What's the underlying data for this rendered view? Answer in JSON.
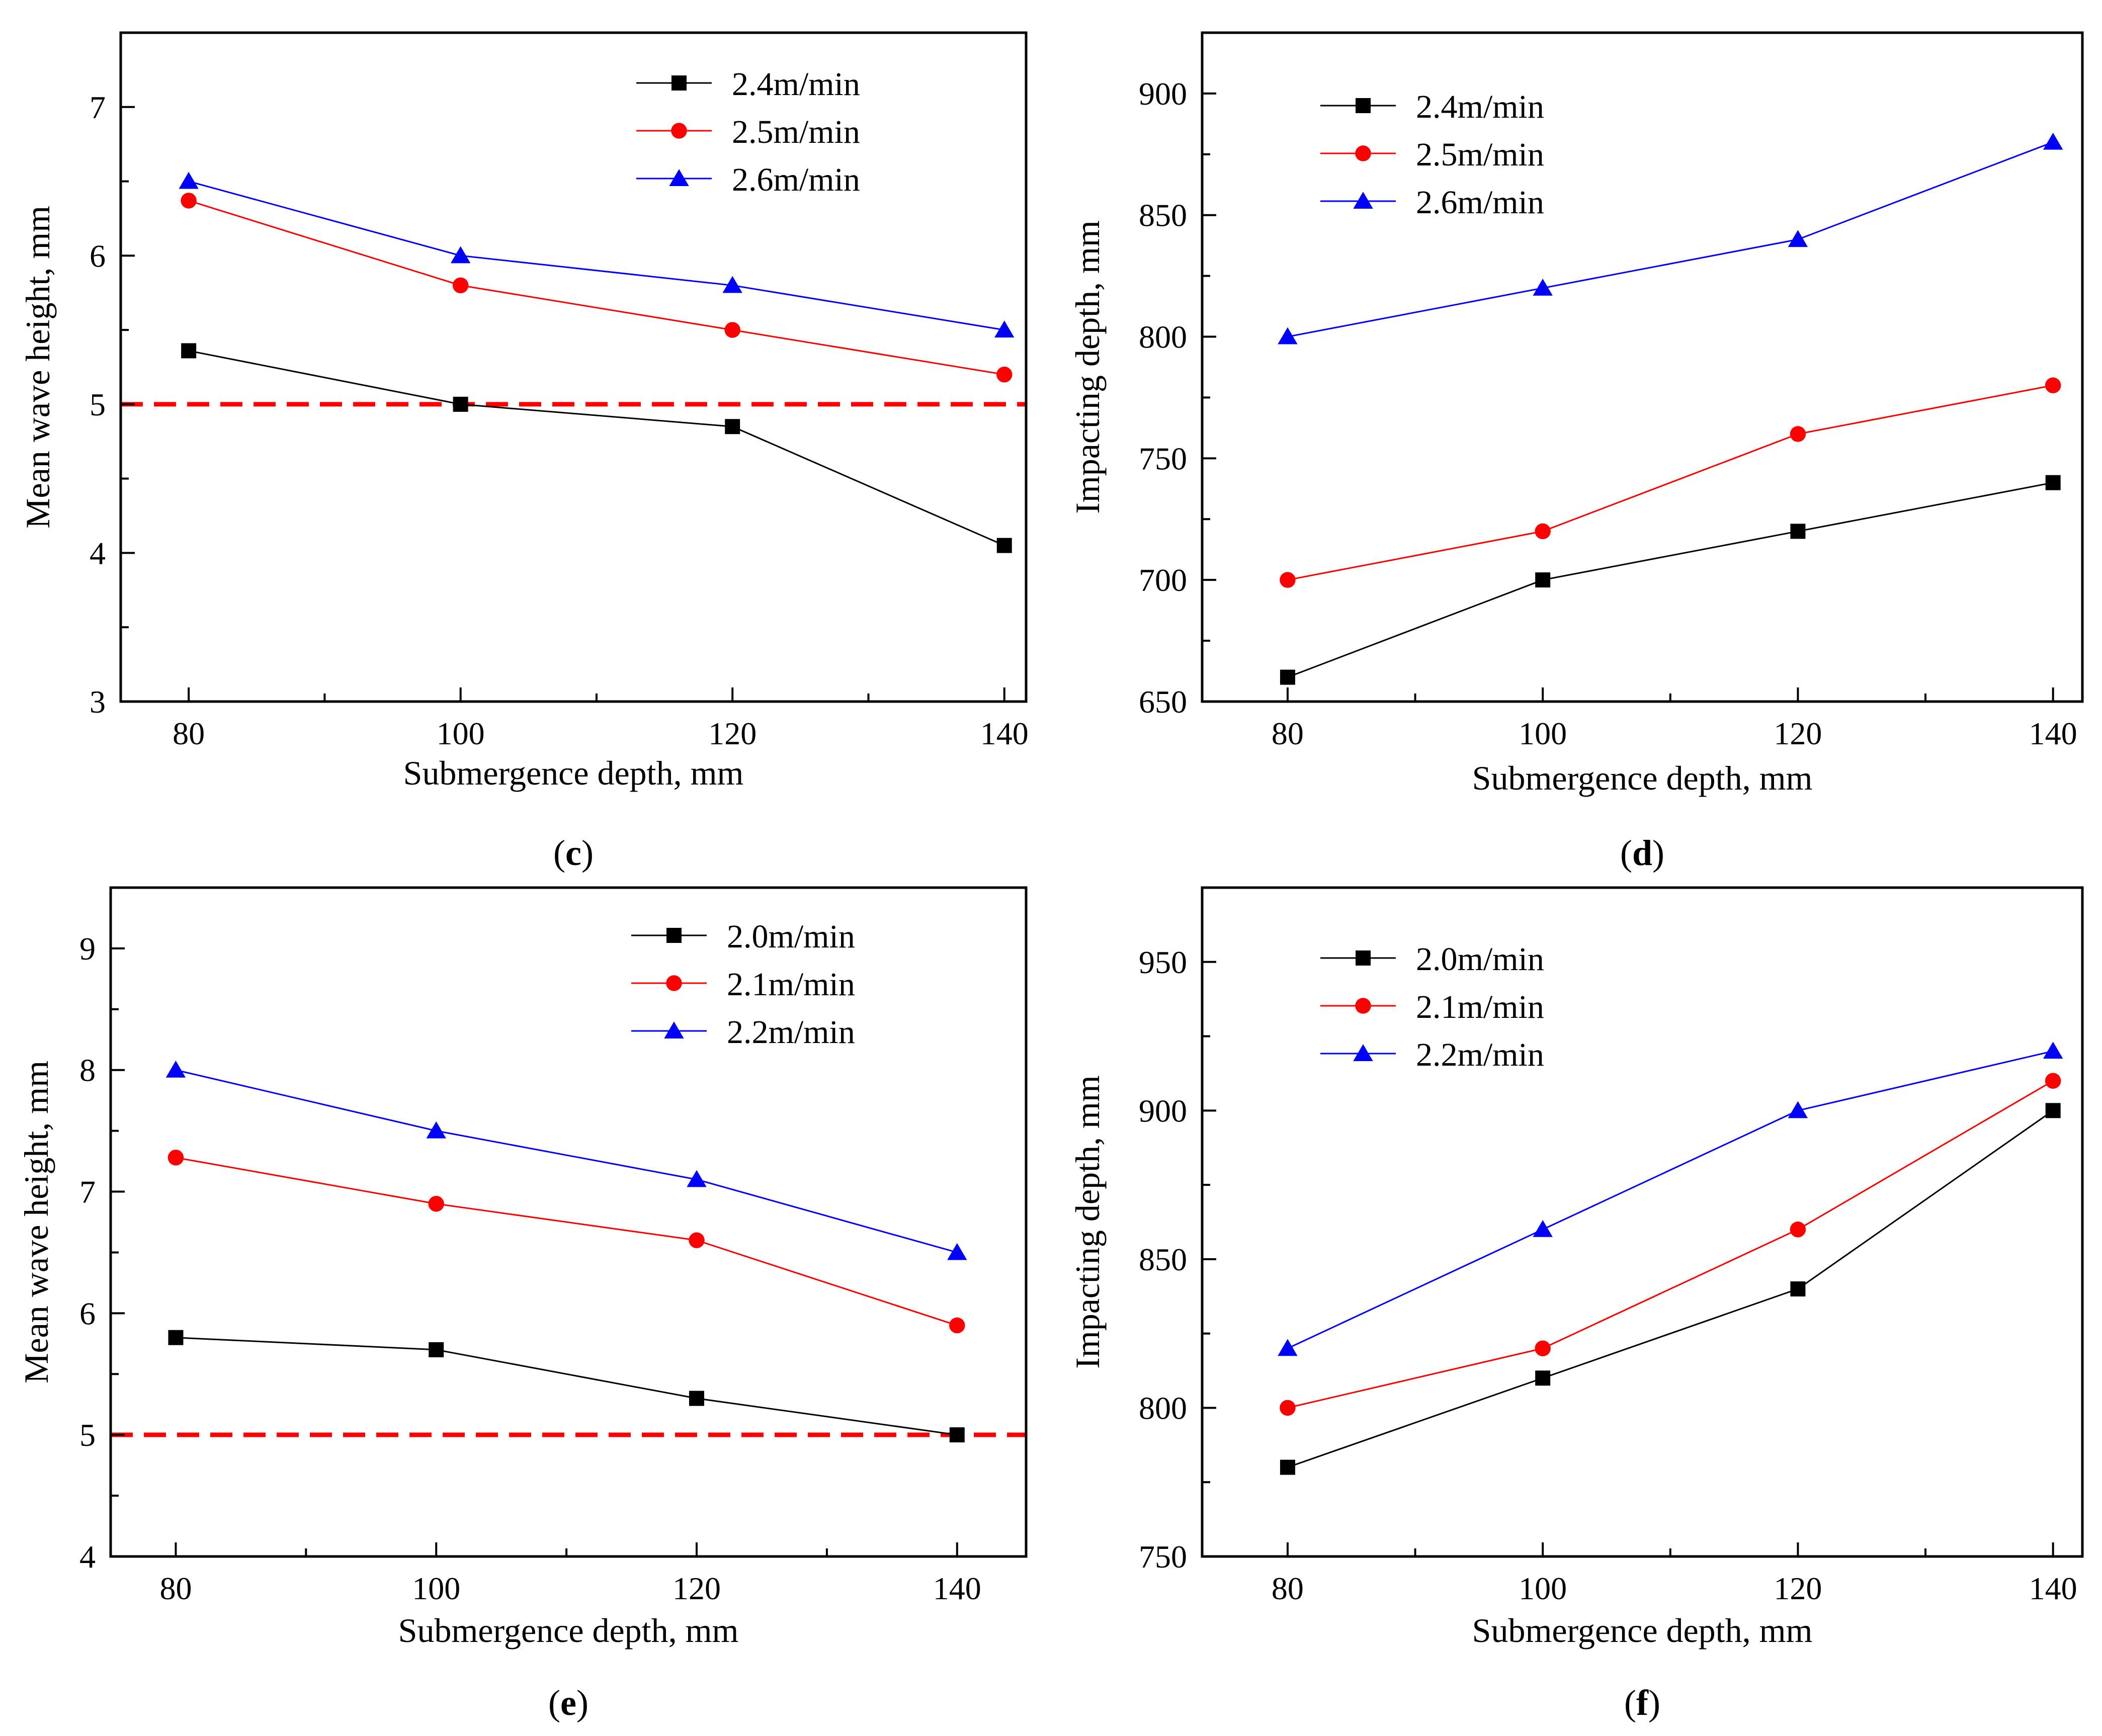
{
  "chart_data": [
    {
      "id": "c",
      "panel_label": "c",
      "type": "line",
      "xlabel": "Submergence depth, mm",
      "ylabel": "Mean wave height, mm",
      "x": [
        80,
        100,
        120,
        140
      ],
      "xticks": [
        80,
        100,
        120,
        140
      ],
      "xlim": [
        75,
        141.6
      ],
      "ylim": [
        3,
        7.5
      ],
      "yticks": [
        3,
        4,
        5,
        6,
        7
      ],
      "minor_y": 0.5,
      "reference_line": {
        "y": 5,
        "color": "#ff0000"
      },
      "series": [
        {
          "name": "2.4m/min",
          "color": "#000000",
          "marker": "square",
          "values": [
            5.36,
            5.0,
            4.85,
            4.05
          ]
        },
        {
          "name": "2.5m/min",
          "color": "#ff0000",
          "marker": "circle",
          "values": [
            6.37,
            5.8,
            5.5,
            5.2
          ]
        },
        {
          "name": "2.6m/min",
          "color": "#0000ff",
          "marker": "triangle",
          "values": [
            6.5,
            6.0,
            5.8,
            5.5
          ]
        }
      ]
    },
    {
      "id": "d",
      "panel_label": "d",
      "type": "line",
      "xlabel": "Submergence  depth, mm",
      "ylabel": "Impacting depth, mm",
      "x": [
        80,
        100,
        120,
        140
      ],
      "xticks": [
        80,
        100,
        120,
        140
      ],
      "xlim": [
        73.3,
        142.3
      ],
      "ylim": [
        650,
        925
      ],
      "yticks": [
        650,
        700,
        750,
        800,
        850,
        900
      ],
      "minor_y": 25,
      "series": [
        {
          "name": "2.4m/min",
          "color": "#000000",
          "marker": "square",
          "values": [
            660,
            700,
            720,
            740
          ]
        },
        {
          "name": "2.5m/min",
          "color": "#ff0000",
          "marker": "circle",
          "values": [
            700,
            720,
            760,
            780
          ]
        },
        {
          "name": "2.6m/min",
          "color": "#0000ff",
          "marker": "triangle",
          "values": [
            800,
            820,
            840,
            880
          ]
        }
      ]
    },
    {
      "id": "e",
      "panel_label": "e",
      "type": "line",
      "xlabel": "Submergence depth, mm",
      "ylabel": "Mean wave height, mm",
      "x": [
        80,
        100,
        120,
        140
      ],
      "xticks": [
        80,
        100,
        120,
        140
      ],
      "xlim": [
        75,
        145.3
      ],
      "ylim": [
        4,
        9.5
      ],
      "yticks": [
        4,
        5,
        6,
        7,
        8,
        9
      ],
      "minor_y": 0.5,
      "reference_line": {
        "y": 5,
        "color": "#ff0000"
      },
      "series": [
        {
          "name": "2.0m/min",
          "color": "#000000",
          "marker": "square",
          "values": [
            5.8,
            5.7,
            5.3,
            5.0
          ]
        },
        {
          "name": "2.1m/min",
          "color": "#ff0000",
          "marker": "circle",
          "values": [
            7.28,
            6.9,
            6.6,
            5.9
          ]
        },
        {
          "name": "2.2m/min",
          "color": "#0000ff",
          "marker": "triangle",
          "values": [
            8.0,
            7.5,
            7.1,
            6.5
          ]
        }
      ]
    },
    {
      "id": "f",
      "panel_label": "f",
      "type": "line",
      "xlabel": "Submergence  depth, mm",
      "ylabel": "Impacting depth, mm",
      "x": [
        80,
        100,
        120,
        140
      ],
      "xticks": [
        80,
        100,
        120,
        140
      ],
      "xlim": [
        73.3,
        142.3
      ],
      "ylim": [
        750,
        975
      ],
      "yticks": [
        750,
        800,
        850,
        900,
        950
      ],
      "minor_y": 25,
      "series": [
        {
          "name": "2.0m/min",
          "color": "#000000",
          "marker": "square",
          "values": [
            780,
            810,
            840,
            900
          ]
        },
        {
          "name": "2.1m/min",
          "color": "#ff0000",
          "marker": "circle",
          "values": [
            800,
            820,
            860,
            910
          ]
        },
        {
          "name": "2.2m/min",
          "color": "#0000ff",
          "marker": "triangle",
          "values": [
            820,
            860,
            900,
            920
          ]
        }
      ]
    }
  ]
}
